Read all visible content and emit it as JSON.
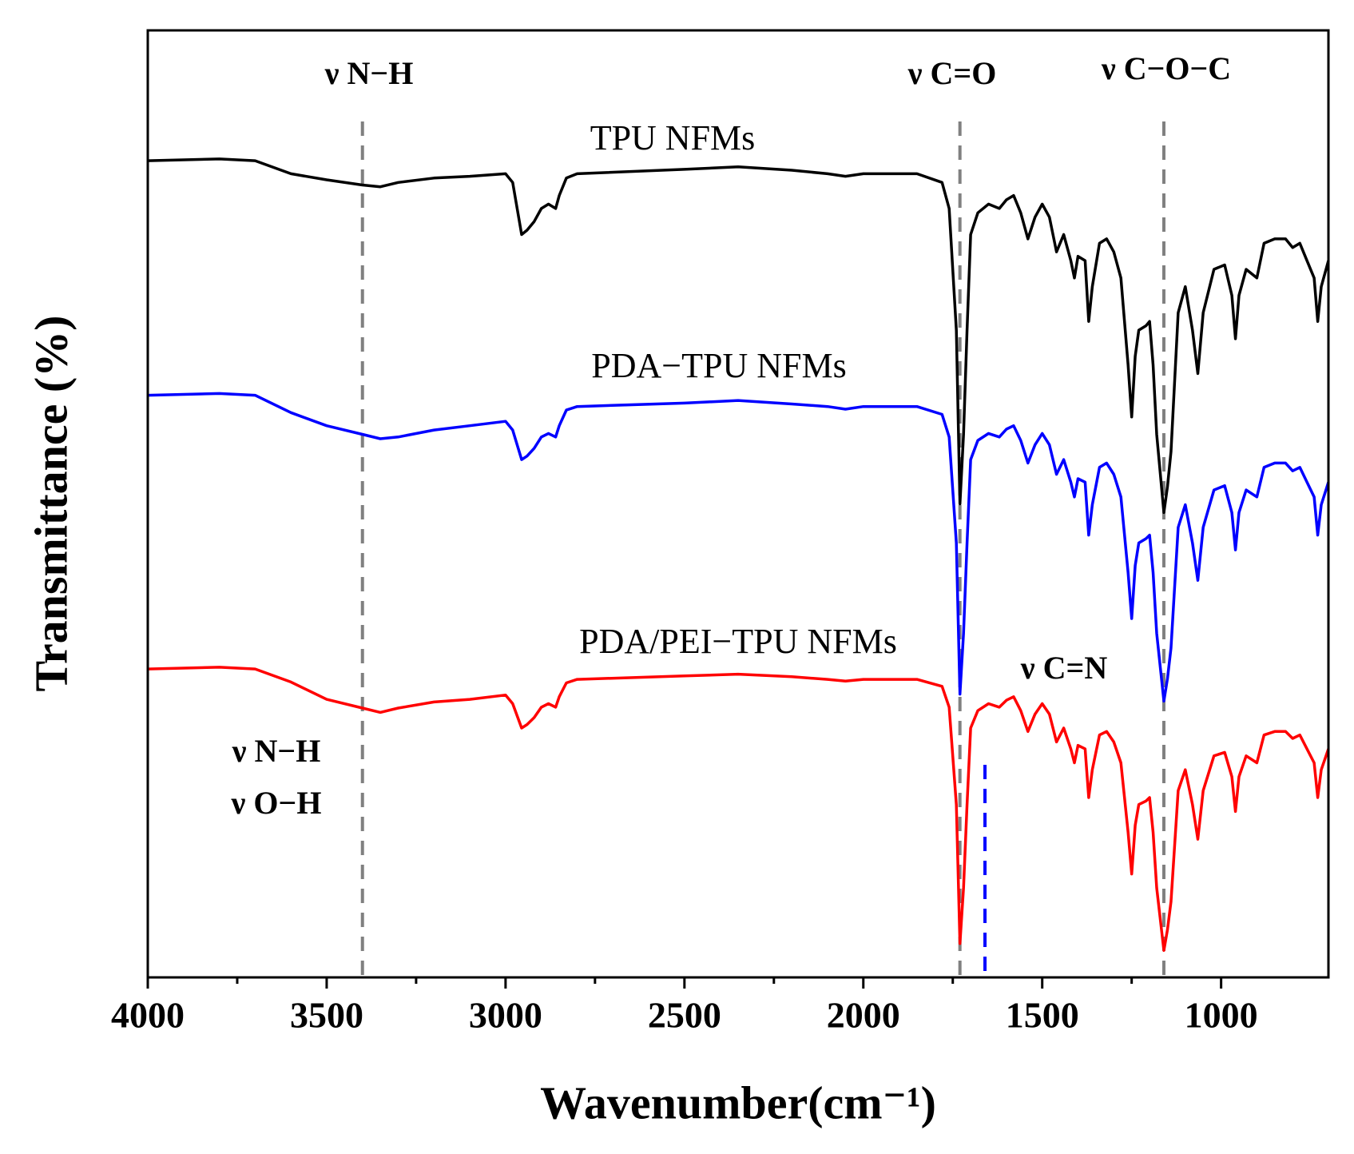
{
  "chart_data": {
    "type": "line",
    "xlabel": "Wavenumber(cm⁻¹)",
    "ylabel": "Transmittance (%)",
    "xlim": [
      4000,
      700
    ],
    "xticks": [
      4000,
      3500,
      3000,
      2500,
      2000,
      1500,
      1000
    ],
    "ylim": [
      0,
      1090
    ],
    "x": [
      4000,
      3800,
      3700,
      3600,
      3500,
      3400,
      3350,
      3300,
      3200,
      3100,
      3000,
      2980,
      2955,
      2940,
      2920,
      2900,
      2880,
      2860,
      2850,
      2830,
      2800,
      2500,
      2350,
      2200,
      2100,
      2050,
      2000,
      1850,
      1780,
      1760,
      1740,
      1730,
      1720,
      1710,
      1700,
      1680,
      1650,
      1620,
      1600,
      1580,
      1560,
      1540,
      1520,
      1500,
      1480,
      1460,
      1440,
      1420,
      1410,
      1400,
      1380,
      1370,
      1360,
      1340,
      1320,
      1300,
      1280,
      1260,
      1250,
      1240,
      1230,
      1210,
      1200,
      1190,
      1180,
      1160,
      1150,
      1140,
      1120,
      1100,
      1080,
      1065,
      1050,
      1020,
      990,
      970,
      960,
      950,
      930,
      900,
      880,
      850,
      820,
      800,
      780,
      760,
      740,
      730,
      720,
      700
    ],
    "series": [
      {
        "name": "TPU NFMs",
        "color": "#000000",
        "values": [
          940,
          942,
          940,
          925,
          918,
          912,
          910,
          915,
          920,
          922,
          925,
          915,
          855,
          860,
          870,
          885,
          890,
          885,
          900,
          920,
          925,
          930,
          933,
          929,
          925,
          922,
          925,
          925,
          915,
          885,
          745,
          545,
          625,
          745,
          855,
          880,
          890,
          885,
          895,
          900,
          880,
          850,
          875,
          890,
          875,
          835,
          855,
          825,
          805,
          830,
          825,
          755,
          795,
          845,
          850,
          835,
          805,
          705,
          645,
          715,
          745,
          750,
          755,
          705,
          625,
          535,
          565,
          605,
          765,
          795,
          745,
          695,
          765,
          815,
          820,
          785,
          735,
          785,
          815,
          805,
          845,
          850,
          850,
          840,
          845,
          825,
          805,
          755,
          795,
          825
        ]
      },
      {
        "name": "PDA−TPU NFMs",
        "color": "#0000ff",
        "values": [
          670,
          672,
          670,
          650,
          635,
          625,
          620,
          622,
          630,
          635,
          640,
          630,
          596,
          600,
          609,
          622,
          626,
          622,
          635,
          653,
          657,
          661,
          664,
          660,
          657,
          654,
          657,
          657,
          648,
          622,
          500,
          326,
          396,
          500,
          596,
          618,
          626,
          622,
          631,
          635,
          618,
          592,
          613,
          626,
          613,
          579,
          596,
          570,
          553,
          574,
          570,
          509,
          544,
          587,
          592,
          579,
          553,
          466,
          413,
          474,
          500,
          505,
          509,
          466,
          396,
          318,
          344,
          379,
          518,
          544,
          500,
          457,
          518,
          561,
          566,
          535,
          492,
          535,
          561,
          553,
          587,
          592,
          592,
          583,
          587,
          570,
          553,
          509,
          544,
          570
        ]
      },
      {
        "name": "PDA/PEI−TPU NFMs",
        "color": "#ff0000",
        "values": [
          355,
          357,
          355,
          340,
          320,
          310,
          305,
          310,
          317,
          320,
          325,
          315,
          287,
          291,
          299,
          311,
          315,
          311,
          323,
          339,
          343,
          347,
          349,
          346,
          343,
          341,
          343,
          343,
          335,
          311,
          199,
          39,
          103,
          199,
          287,
          307,
          315,
          311,
          319,
          323,
          307,
          283,
          303,
          315,
          303,
          271,
          287,
          263,
          247,
          267,
          263,
          207,
          239,
          279,
          283,
          271,
          247,
          167,
          119,
          175,
          199,
          203,
          207,
          167,
          103,
          31,
          55,
          87,
          215,
          239,
          199,
          159,
          215,
          255,
          259,
          231,
          191,
          231,
          255,
          247,
          279,
          283,
          283,
          275,
          279,
          263,
          247,
          207,
          239,
          263
        ]
      }
    ],
    "vlines": [
      {
        "x": 3400,
        "color": "#808080"
      },
      {
        "x": 1730,
        "color": "#808080"
      },
      {
        "x": 1160,
        "color": "#808080"
      },
      {
        "x": 1660,
        "color": "#0000ff"
      }
    ],
    "annotations": [
      "ν N−H",
      "ν C=O",
      "ν C−O−C",
      "ν C=N",
      "ν N−H",
      "ν O−H"
    ]
  }
}
